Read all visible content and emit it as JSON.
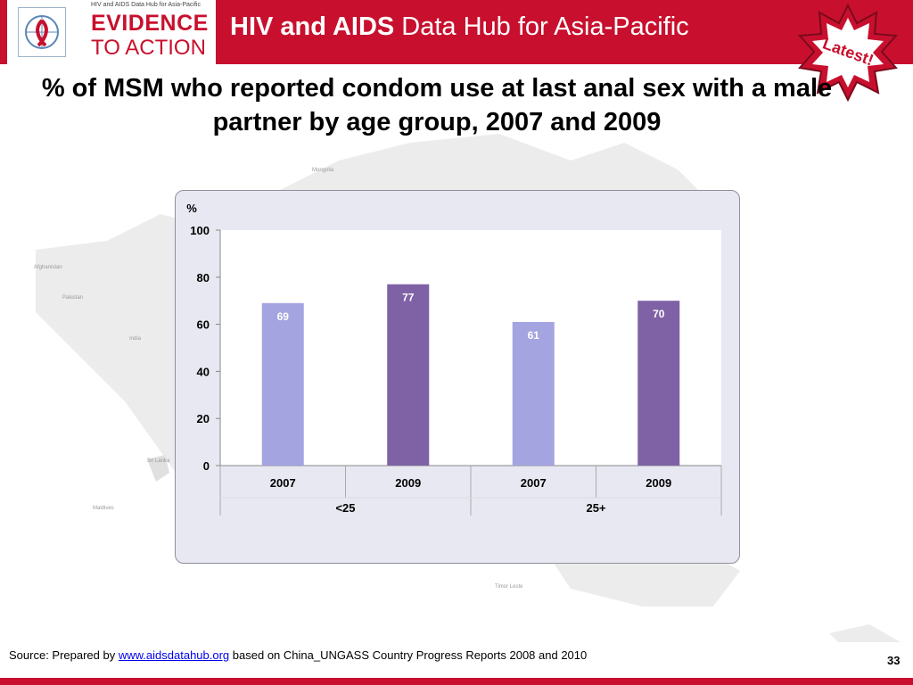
{
  "header": {
    "logo_subtitle": "HIV and AIDS Data Hub for Asia-Pacific",
    "logo_line1": "EVIDENCE",
    "logo_line2": "TO ACTION",
    "title_bold": "HIV and AIDS",
    "title_rest": "Data Hub for Asia-Pacific",
    "badge_text": "Latest!",
    "color_primary": "#c8102e"
  },
  "map_labels": [
    "Mongolia",
    "Afghanistan",
    "Pakistan",
    "India",
    "Sri Lanka",
    "Maldives",
    "Timor Leste"
  ],
  "slide_title": "% of MSM who reported condom use at last anal sex with a male partner by age group, 2007 and 2009",
  "chart_data": {
    "type": "bar",
    "ylabel": "%",
    "ylim": [
      0,
      100
    ],
    "yticks": [
      0,
      20,
      40,
      60,
      80,
      100
    ],
    "groups": [
      "<25",
      "25+"
    ],
    "categories": [
      "2007",
      "2009",
      "2007",
      "2009"
    ],
    "category_group": [
      "<25",
      "<25",
      "25+",
      "25+"
    ],
    "values": [
      69,
      77,
      61,
      70
    ],
    "bar_colors": [
      "#a4a4e0",
      "#7f62a6",
      "#a4a4e0",
      "#7f62a6"
    ],
    "data_labels": [
      "69",
      "77",
      "61",
      "70"
    ],
    "legend": "none",
    "grid": false
  },
  "footer": {
    "source_prefix": "Source: Prepared by ",
    "source_link": "www.aidsdatahub.org",
    "source_suffix": "  based on China_UNGASS Country Progress Reports 2008 and 2010",
    "page_number": "33"
  }
}
